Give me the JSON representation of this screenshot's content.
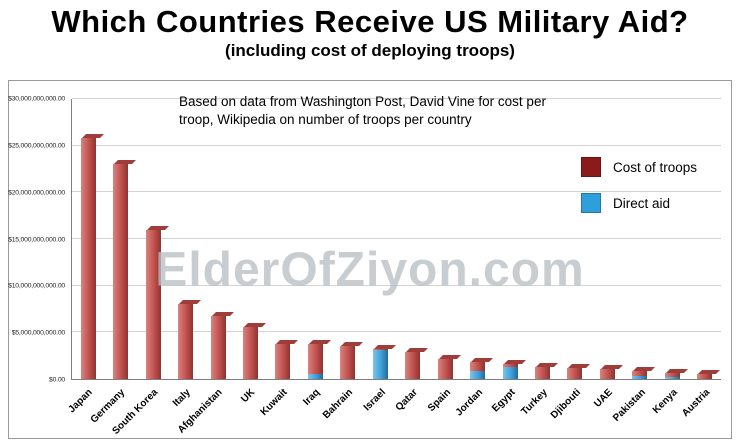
{
  "header": {
    "title": "Which Countries Receive US Military Aid?",
    "subtitle": "(including cost of deploying troops)"
  },
  "chart": {
    "annotation": "Based on data from Washington Post, David Vine for cost per troop, Wikipedia on number of troops per country",
    "watermark": "ElderOfZiyon.com"
  },
  "legend": {
    "entries": [
      {
        "label": "Cost of troops",
        "color": "#8B1B1B"
      },
      {
        "label": "Direct aid",
        "color": "#2F9FDB"
      }
    ]
  },
  "chart_data": {
    "type": "bar",
    "stacked": true,
    "title": "Which Countries Receive US Military Aid? (including cost of deploying troops)",
    "unit": "USD billions",
    "grid": true,
    "legend_position": "upper-right",
    "categories": [
      "Japan",
      "Germany",
      "South Korea",
      "Italy",
      "Afghanistan",
      "UK",
      "Kuwait",
      "Iraq",
      "Bahrain",
      "Israel",
      "Qatar",
      "Spain",
      "Jordan",
      "Egypt",
      "Turkey",
      "Djibouti",
      "UAE",
      "Pakistan",
      "Kenya",
      "Austria"
    ],
    "series": [
      {
        "name": "Direct aid",
        "color": "#3F9FD8",
        "values": [
          0,
          0,
          0,
          0,
          0,
          0,
          0,
          0.5,
          0,
          3.1,
          0,
          0,
          0.9,
          1.3,
          0,
          0,
          0,
          0.3,
          0.25,
          0
        ]
      },
      {
        "name": "Cost of troops",
        "color": "#C0504D",
        "values": [
          25.8,
          23.0,
          16.0,
          8.0,
          6.8,
          5.6,
          3.8,
          3.2,
          3.5,
          0.15,
          2.9,
          2.1,
          0.9,
          0.35,
          1.3,
          1.15,
          1.1,
          0.6,
          0.35,
          0.55
        ]
      }
    ],
    "ylim": [
      0,
      30
    ],
    "yticks": [
      {
        "v": 0,
        "label": "$0.00"
      },
      {
        "v": 5,
        "label": "$5,000,000,000.00"
      },
      {
        "v": 10,
        "label": "$10,000,000,000.00"
      },
      {
        "v": 15,
        "label": "$15,000,000,000.00"
      },
      {
        "v": 20,
        "label": "$20,000,000,000.00"
      },
      {
        "v": 25,
        "label": "$25,000,000,000.00"
      },
      {
        "v": 30,
        "label": "$30,000,000,000.00"
      }
    ]
  }
}
